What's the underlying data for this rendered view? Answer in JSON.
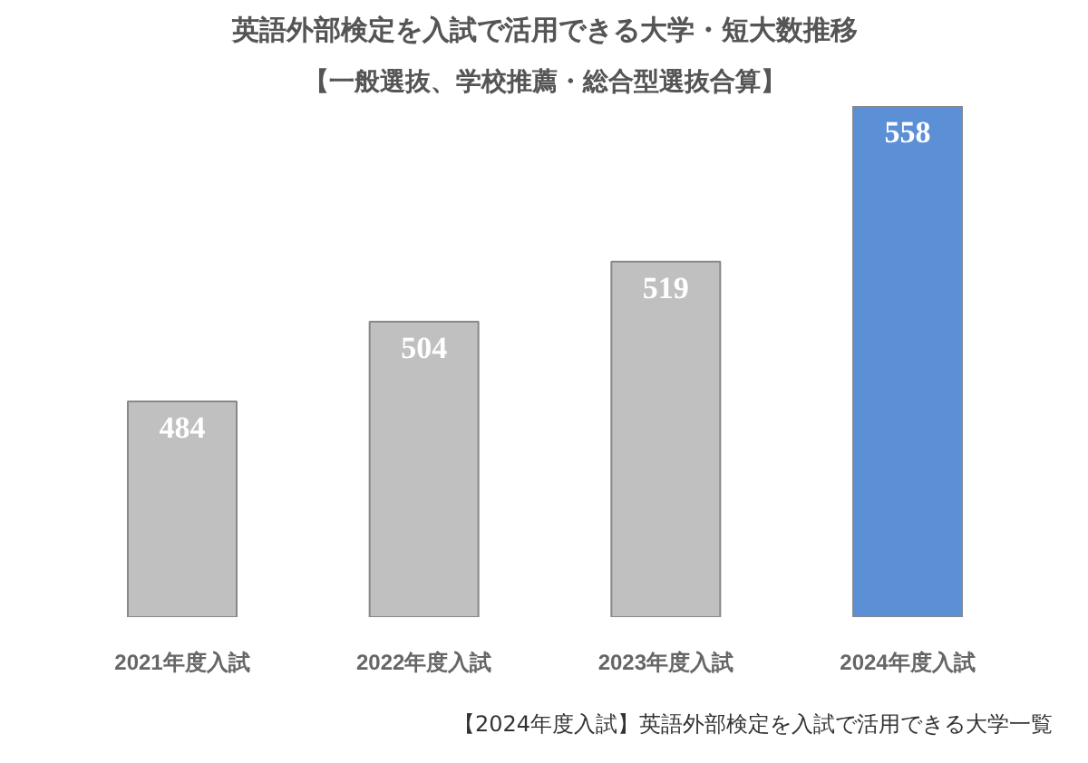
{
  "chart_data": {
    "type": "bar",
    "title": "英語外部検定を入試で活用できる大学・短大数推移",
    "subtitle": "【一般選抜、学校推薦・総合型選抜合算】",
    "categories": [
      "2021年度入試",
      "2022年度入試",
      "2023年度入試",
      "2024年度入試"
    ],
    "values": [
      484,
      504,
      519,
      558
    ],
    "colors": [
      "#c0c0c0",
      "#c0c0c0",
      "#c0c0c0",
      "#5b8fd6"
    ],
    "ylim": [
      430,
      558
    ],
    "data_labels": true,
    "grid": false,
    "annotations": [
      "【2024年度入試】英語外部検定を入試で活用できる大学一覧"
    ]
  }
}
